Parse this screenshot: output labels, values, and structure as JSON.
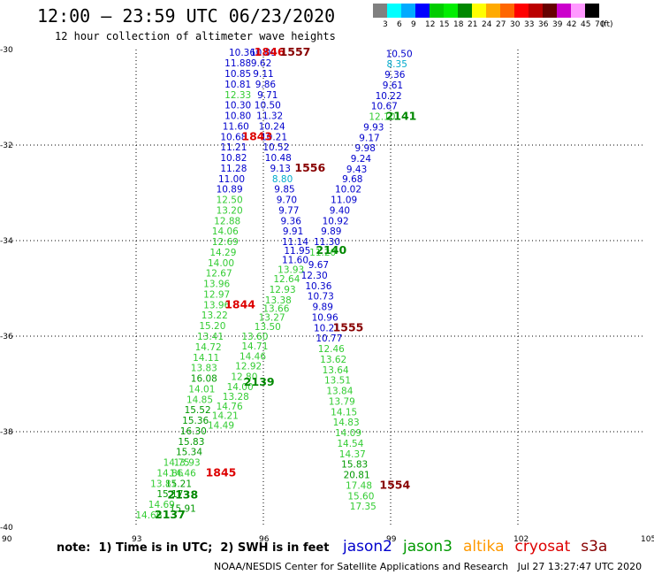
{
  "title": "12:00 – 23:59 UTC 06/23/2020",
  "subtitle": "12 hour collection of altimeter wave heights",
  "colorbar": {
    "colors": [
      "#808080",
      "#00ffff",
      "#00aaff",
      "#0000ff",
      "#00cc00",
      "#00ee00",
      "#008800",
      "#ffff00",
      "#ffaa00",
      "#ff6600",
      "#ff0000",
      "#bb0000",
      "#660000",
      "#cc00cc",
      "#ff99ff",
      "#000000"
    ],
    "labels": [
      "3",
      "6",
      "9",
      "12",
      "15",
      "18",
      "21",
      "24",
      "27",
      "30",
      "33",
      "36",
      "39",
      "42",
      "45",
      "70"
    ],
    "unit": "(ft)"
  },
  "axes": {
    "x_ticks": [
      "90",
      "93",
      "96",
      "99",
      "102",
      "105"
    ],
    "y_ticks": [
      "-30",
      "-32",
      "-34",
      "-36",
      "-38",
      "-40"
    ]
  },
  "observations": [
    {
      "v": "10.36",
      "lon": 95.5,
      "lat": -30.06,
      "c": "#0000cc"
    },
    {
      "v": "11.88",
      "lon": 95.4,
      "lat": -30.28,
      "c": "#0000cc"
    },
    {
      "v": "10.85",
      "lon": 95.4,
      "lat": -30.5,
      "c": "#0000cc"
    },
    {
      "v": "10.81",
      "lon": 95.4,
      "lat": -30.72,
      "c": "#0000cc"
    },
    {
      "v": "12.33",
      "lon": 95.4,
      "lat": -30.94,
      "c": "#33cc33"
    },
    {
      "v": "10.30",
      "lon": 95.4,
      "lat": -31.16,
      "c": "#0000cc"
    },
    {
      "v": "10.80",
      "lon": 95.4,
      "lat": -31.38,
      "c": "#0000cc"
    },
    {
      "v": "11.60",
      "lon": 95.35,
      "lat": -31.6,
      "c": "#0000cc"
    },
    {
      "v": "10.68",
      "lon": 95.3,
      "lat": -31.82,
      "c": "#0000cc"
    },
    {
      "v": "11.21",
      "lon": 95.3,
      "lat": -32.04,
      "c": "#0000cc"
    },
    {
      "v": "10.82",
      "lon": 95.3,
      "lat": -32.26,
      "c": "#0000cc"
    },
    {
      "v": "11.28",
      "lon": 95.3,
      "lat": -32.48,
      "c": "#0000cc"
    },
    {
      "v": "11.00",
      "lon": 95.25,
      "lat": -32.7,
      "c": "#0000cc"
    },
    {
      "v": "10.89",
      "lon": 95.2,
      "lat": -32.92,
      "c": "#0000cc"
    },
    {
      "v": "12.50",
      "lon": 95.2,
      "lat": -33.14,
      "c": "#33cc33"
    },
    {
      "v": "13.20",
      "lon": 95.2,
      "lat": -33.36,
      "c": "#33cc33"
    },
    {
      "v": "12.88",
      "lon": 95.15,
      "lat": -33.58,
      "c": "#33cc33"
    },
    {
      "v": "14.06",
      "lon": 95.1,
      "lat": -33.8,
      "c": "#33cc33"
    },
    {
      "v": "12.69",
      "lon": 95.1,
      "lat": -34.02,
      "c": "#33cc33"
    },
    {
      "v": "14.29",
      "lon": 95.05,
      "lat": -34.24,
      "c": "#33cc33"
    },
    {
      "v": "14.00",
      "lon": 95.0,
      "lat": -34.46,
      "c": "#33cc33"
    },
    {
      "v": "12.67",
      "lon": 94.95,
      "lat": -34.68,
      "c": "#33cc33"
    },
    {
      "v": "13.96",
      "lon": 94.9,
      "lat": -34.9,
      "c": "#33cc33"
    },
    {
      "v": "12.97",
      "lon": 94.9,
      "lat": -35.12,
      "c": "#33cc33"
    },
    {
      "v": "13.96",
      "lon": 94.9,
      "lat": -35.34,
      "c": "#33cc33"
    },
    {
      "v": "13.22",
      "lon": 94.85,
      "lat": -35.56,
      "c": "#33cc33"
    },
    {
      "v": "15.20",
      "lon": 94.8,
      "lat": -35.78,
      "c": "#33cc33"
    },
    {
      "v": "13.41",
      "lon": 94.75,
      "lat": -36.0,
      "c": "#33cc33"
    },
    {
      "v": "14.72",
      "lon": 94.7,
      "lat": -36.22,
      "c": "#33cc33"
    },
    {
      "v": "14.11",
      "lon": 94.65,
      "lat": -36.44,
      "c": "#33cc33"
    },
    {
      "v": "13.83",
      "lon": 94.6,
      "lat": -36.66,
      "c": "#33cc33"
    },
    {
      "v": "16.08",
      "lon": 94.6,
      "lat": -36.88,
      "c": "#009900"
    },
    {
      "v": "14.01",
      "lon": 94.55,
      "lat": -37.1,
      "c": "#33cc33"
    },
    {
      "v": "14.85",
      "lon": 94.5,
      "lat": -37.32,
      "c": "#33cc33"
    },
    {
      "v": "15.52",
      "lon": 94.45,
      "lat": -37.54,
      "c": "#009900"
    },
    {
      "v": "15.36",
      "lon": 94.4,
      "lat": -37.76,
      "c": "#009900"
    },
    {
      "v": "16.30",
      "lon": 94.35,
      "lat": -37.98,
      "c": "#009900"
    },
    {
      "v": "15.83",
      "lon": 94.3,
      "lat": -38.2,
      "c": "#009900"
    },
    {
      "v": "15.34",
      "lon": 94.25,
      "lat": -38.42,
      "c": "#009900"
    },
    {
      "v": "13.93",
      "lon": 94.2,
      "lat": -38.64,
      "c": "#33cc33"
    },
    {
      "v": "14.46",
      "lon": 94.1,
      "lat": -38.86,
      "c": "#33cc33"
    },
    {
      "v": "15.21",
      "lon": 94.0,
      "lat": -39.08,
      "c": "#009900"
    },
    {
      "v": "15.17",
      "lon": 93.8,
      "lat": -39.3,
      "c": "#009900"
    },
    {
      "v": "14.69",
      "lon": 93.6,
      "lat": -39.52,
      "c": "#33cc33"
    },
    {
      "v": "14.66",
      "lon": 93.3,
      "lat": -39.74,
      "c": "#33cc33"
    },
    {
      "v": "14.86",
      "lon": 93.8,
      "lat": -38.86,
      "c": "#33cc33"
    },
    {
      "v": "13.81",
      "lon": 93.65,
      "lat": -39.08,
      "c": "#33cc33"
    },
    {
      "v": "14.75",
      "lon": 93.95,
      "lat": -38.64,
      "c": "#33cc33"
    },
    {
      "v": "15.91",
      "lon": 94.1,
      "lat": -39.6,
      "c": "#009900"
    },
    {
      "v": "10.09",
      "lon": 96.0,
      "lat": -30.06,
      "c": "#0000cc"
    },
    {
      "v": "9.62",
      "lon": 95.95,
      "lat": -30.28,
      "c": "#0000cc"
    },
    {
      "v": "9.11",
      "lon": 96.0,
      "lat": -30.5,
      "c": "#0000cc"
    },
    {
      "v": "9.86",
      "lon": 96.05,
      "lat": -30.72,
      "c": "#0000cc"
    },
    {
      "v": "9.71",
      "lon": 96.1,
      "lat": -30.94,
      "c": "#0000cc"
    },
    {
      "v": "10.50",
      "lon": 96.1,
      "lat": -31.16,
      "c": "#0000cc"
    },
    {
      "v": "11.32",
      "lon": 96.15,
      "lat": -31.38,
      "c": "#0000cc"
    },
    {
      "v": "10.24",
      "lon": 96.2,
      "lat": -31.6,
      "c": "#0000cc"
    },
    {
      "v": "10.21",
      "lon": 96.25,
      "lat": -31.82,
      "c": "#0000cc"
    },
    {
      "v": "10.52",
      "lon": 96.3,
      "lat": -32.04,
      "c": "#0000cc"
    },
    {
      "v": "10.48",
      "lon": 96.35,
      "lat": -32.26,
      "c": "#0000cc"
    },
    {
      "v": "9.13",
      "lon": 96.4,
      "lat": -32.48,
      "c": "#0000cc"
    },
    {
      "v": "8.80",
      "lon": 96.45,
      "lat": -32.7,
      "c": "#00aacc"
    },
    {
      "v": "9.85",
      "lon": 96.5,
      "lat": -32.92,
      "c": "#0000cc"
    },
    {
      "v": "9.70",
      "lon": 96.55,
      "lat": -33.14,
      "c": "#0000cc"
    },
    {
      "v": "9.77",
      "lon": 96.6,
      "lat": -33.36,
      "c": "#0000cc"
    },
    {
      "v": "9.36",
      "lon": 96.65,
      "lat": -33.58,
      "c": "#0000cc"
    },
    {
      "v": "9.91",
      "lon": 96.7,
      "lat": -33.8,
      "c": "#0000cc"
    },
    {
      "v": "11.14",
      "lon": 96.75,
      "lat": -34.02,
      "c": "#0000cc"
    },
    {
      "v": "11.95",
      "lon": 96.8,
      "lat": -34.2,
      "c": "#0000cc"
    },
    {
      "v": "11.60",
      "lon": 96.75,
      "lat": -34.4,
      "c": "#0000cc"
    },
    {
      "v": "13.93",
      "lon": 96.65,
      "lat": -34.6,
      "c": "#33cc33"
    },
    {
      "v": "12.64",
      "lon": 96.55,
      "lat": -34.8,
      "c": "#33cc33"
    },
    {
      "v": "12.93",
      "lon": 96.45,
      "lat": -35.02,
      "c": "#33cc33"
    },
    {
      "v": "13.38",
      "lon": 96.35,
      "lat": -35.24,
      "c": "#33cc33"
    },
    {
      "v": "13.66",
      "lon": 96.3,
      "lat": -35.42,
      "c": "#33cc33"
    },
    {
      "v": "13.27",
      "lon": 96.2,
      "lat": -35.6,
      "c": "#33cc33"
    },
    {
      "v": "13.50",
      "lon": 96.1,
      "lat": -35.8,
      "c": "#33cc33"
    },
    {
      "v": "14.71",
      "lon": 95.8,
      "lat": -36.2,
      "c": "#33cc33"
    },
    {
      "v": "14.46",
      "lon": 95.75,
      "lat": -36.42,
      "c": "#33cc33"
    },
    {
      "v": "12.92",
      "lon": 95.65,
      "lat": -36.62,
      "c": "#33cc33"
    },
    {
      "v": "12.80",
      "lon": 95.55,
      "lat": -36.84,
      "c": "#33cc33"
    },
    {
      "v": "14.00",
      "lon": 95.45,
      "lat": -37.06,
      "c": "#33cc33"
    },
    {
      "v": "13.28",
      "lon": 95.35,
      "lat": -37.26,
      "c": "#33cc33"
    },
    {
      "v": "14.76",
      "lon": 95.2,
      "lat": -37.46,
      "c": "#33cc33"
    },
    {
      "v": "14.21",
      "lon": 95.1,
      "lat": -37.66,
      "c": "#33cc33"
    },
    {
      "v": "14.49",
      "lon": 95.0,
      "lat": -37.86,
      "c": "#33cc33"
    },
    {
      "v": "13.60",
      "lon": 95.8,
      "lat": -36.0,
      "c": "#33cc33"
    },
    {
      "v": "10.50",
      "lon": 99.2,
      "lat": -30.08,
      "c": "#0000cc"
    },
    {
      "v": "8.35",
      "lon": 99.15,
      "lat": -30.3,
      "c": "#00aacc"
    },
    {
      "v": "9.36",
      "lon": 99.1,
      "lat": -30.52,
      "c": "#0000cc"
    },
    {
      "v": "9.61",
      "lon": 99.05,
      "lat": -30.74,
      "c": "#0000cc"
    },
    {
      "v": "10.22",
      "lon": 98.95,
      "lat": -30.96,
      "c": "#0000cc"
    },
    {
      "v": "10.67",
      "lon": 98.85,
      "lat": -31.18,
      "c": "#0000cc"
    },
    {
      "v": "12.10",
      "lon": 98.8,
      "lat": -31.4,
      "c": "#33cc33"
    },
    {
      "v": "9.93",
      "lon": 98.6,
      "lat": -31.62,
      "c": "#0000cc"
    },
    {
      "v": "9.17",
      "lon": 98.5,
      "lat": -31.84,
      "c": "#0000cc"
    },
    {
      "v": "9.98",
      "lon": 98.4,
      "lat": -32.06,
      "c": "#0000cc"
    },
    {
      "v": "9.24",
      "lon": 98.3,
      "lat": -32.28,
      "c": "#0000cc"
    },
    {
      "v": "9.43",
      "lon": 98.2,
      "lat": -32.5,
      "c": "#0000cc"
    },
    {
      "v": "9.68",
      "lon": 98.1,
      "lat": -32.7,
      "c": "#0000cc"
    },
    {
      "v": "10.02",
      "lon": 98.0,
      "lat": -32.92,
      "c": "#0000cc"
    },
    {
      "v": "11.09",
      "lon": 97.9,
      "lat": -33.14,
      "c": "#0000cc"
    },
    {
      "v": "9.40",
      "lon": 97.8,
      "lat": -33.36,
      "c": "#0000cc"
    },
    {
      "v": "10.92",
      "lon": 97.7,
      "lat": -33.58,
      "c": "#0000cc"
    },
    {
      "v": "9.89",
      "lon": 97.6,
      "lat": -33.8,
      "c": "#0000cc"
    },
    {
      "v": "11.30",
      "lon": 97.5,
      "lat": -34.02,
      "c": "#0000cc"
    },
    {
      "v": "11.20",
      "lon": 97.4,
      "lat": -34.24,
      "c": "#33cc33"
    },
    {
      "v": "9.67",
      "lon": 97.3,
      "lat": -34.5,
      "c": "#0000cc"
    },
    {
      "v": "12.30",
      "lon": 97.2,
      "lat": -34.72,
      "c": "#0000cc"
    },
    {
      "v": "10.36",
      "lon": 97.3,
      "lat": -34.94,
      "c": "#0000cc"
    },
    {
      "v": "10.73",
      "lon": 97.35,
      "lat": -35.16,
      "c": "#0000cc"
    },
    {
      "v": "9.89",
      "lon": 97.4,
      "lat": -35.38,
      "c": "#0000cc"
    },
    {
      "v": "10.96",
      "lon": 97.45,
      "lat": -35.6,
      "c": "#0000cc"
    },
    {
      "v": "10.21",
      "lon": 97.5,
      "lat": -35.82,
      "c": "#0000cc"
    },
    {
      "v": "10.77",
      "lon": 97.55,
      "lat": -36.04,
      "c": "#0000cc"
    },
    {
      "v": "12.46",
      "lon": 97.6,
      "lat": -36.26,
      "c": "#33cc33"
    },
    {
      "v": "13.62",
      "lon": 97.65,
      "lat": -36.48,
      "c": "#33cc33"
    },
    {
      "v": "13.64",
      "lon": 97.7,
      "lat": -36.7,
      "c": "#33cc33"
    },
    {
      "v": "13.51",
      "lon": 97.75,
      "lat": -36.92,
      "c": "#33cc33"
    },
    {
      "v": "13.84",
      "lon": 97.8,
      "lat": -37.14,
      "c": "#33cc33"
    },
    {
      "v": "13.79",
      "lon": 97.85,
      "lat": -37.36,
      "c": "#33cc33"
    },
    {
      "v": "14.15",
      "lon": 97.9,
      "lat": -37.58,
      "c": "#33cc33"
    },
    {
      "v": "14.83",
      "lon": 97.95,
      "lat": -37.8,
      "c": "#33cc33"
    },
    {
      "v": "14.09",
      "lon": 98.0,
      "lat": -38.02,
      "c": "#33cc33"
    },
    {
      "v": "14.54",
      "lon": 98.05,
      "lat": -38.24,
      "c": "#33cc33"
    },
    {
      "v": "14.37",
      "lon": 98.1,
      "lat": -38.46,
      "c": "#33cc33"
    },
    {
      "v": "15.83",
      "lon": 98.15,
      "lat": -38.68,
      "c": "#009900"
    },
    {
      "v": "20.81",
      "lon": 98.2,
      "lat": -38.9,
      "c": "#009900"
    },
    {
      "v": "17.48",
      "lon": 98.25,
      "lat": -39.12,
      "c": "#33cc33"
    },
    {
      "v": "15.60",
      "lon": 98.3,
      "lat": -39.34,
      "c": "#33cc33"
    },
    {
      "v": "17.35",
      "lon": 98.35,
      "lat": -39.56,
      "c": "#33cc33"
    }
  ],
  "passes": [
    {
      "v": "1846",
      "lon": 96.15,
      "lat": -30.06,
      "c": "#dd0000"
    },
    {
      "v": "1557",
      "lon": 96.75,
      "lat": -30.06,
      "c": "#880000"
    },
    {
      "v": "1843",
      "lon": 95.85,
      "lat": -31.82,
      "c": "#dd0000"
    },
    {
      "v": "1556",
      "lon": 97.1,
      "lat": -32.48,
      "c": "#880000"
    },
    {
      "v": "2141",
      "lon": 99.25,
      "lat": -31.4,
      "c": "#008800"
    },
    {
      "v": "2140",
      "lon": 97.6,
      "lat": -34.2,
      "c": "#008800"
    },
    {
      "v": "1844",
      "lon": 95.45,
      "lat": -35.34,
      "c": "#dd0000"
    },
    {
      "v": "1555",
      "lon": 98.0,
      "lat": -35.82,
      "c": "#880000"
    },
    {
      "v": "2139",
      "lon": 95.9,
      "lat": -36.96,
      "c": "#008800"
    },
    {
      "v": "1845",
      "lon": 95.0,
      "lat": -38.86,
      "c": "#dd0000"
    },
    {
      "v": "1554",
      "lon": 99.1,
      "lat": -39.12,
      "c": "#880000"
    },
    {
      "v": "2138",
      "lon": 94.1,
      "lat": -39.32,
      "c": "#008800"
    },
    {
      "v": "2137",
      "lon": 93.8,
      "lat": -39.74,
      "c": "#008800"
    }
  ],
  "note": "note:  1) Time is in UTC;  2) SWH is in feet",
  "legend": [
    {
      "label": "jason2",
      "color": "#0000cc"
    },
    {
      "label": "jason3",
      "color": "#009900"
    },
    {
      "label": "altika",
      "color": "#ff9900"
    },
    {
      "label": "cryosat",
      "color": "#dd0000"
    },
    {
      "label": "s3a",
      "color": "#880000"
    }
  ],
  "credit": "NOAA/NESDIS Center for Satellite Applications and Research   Jul 27 13:27:47 UTC 2020"
}
